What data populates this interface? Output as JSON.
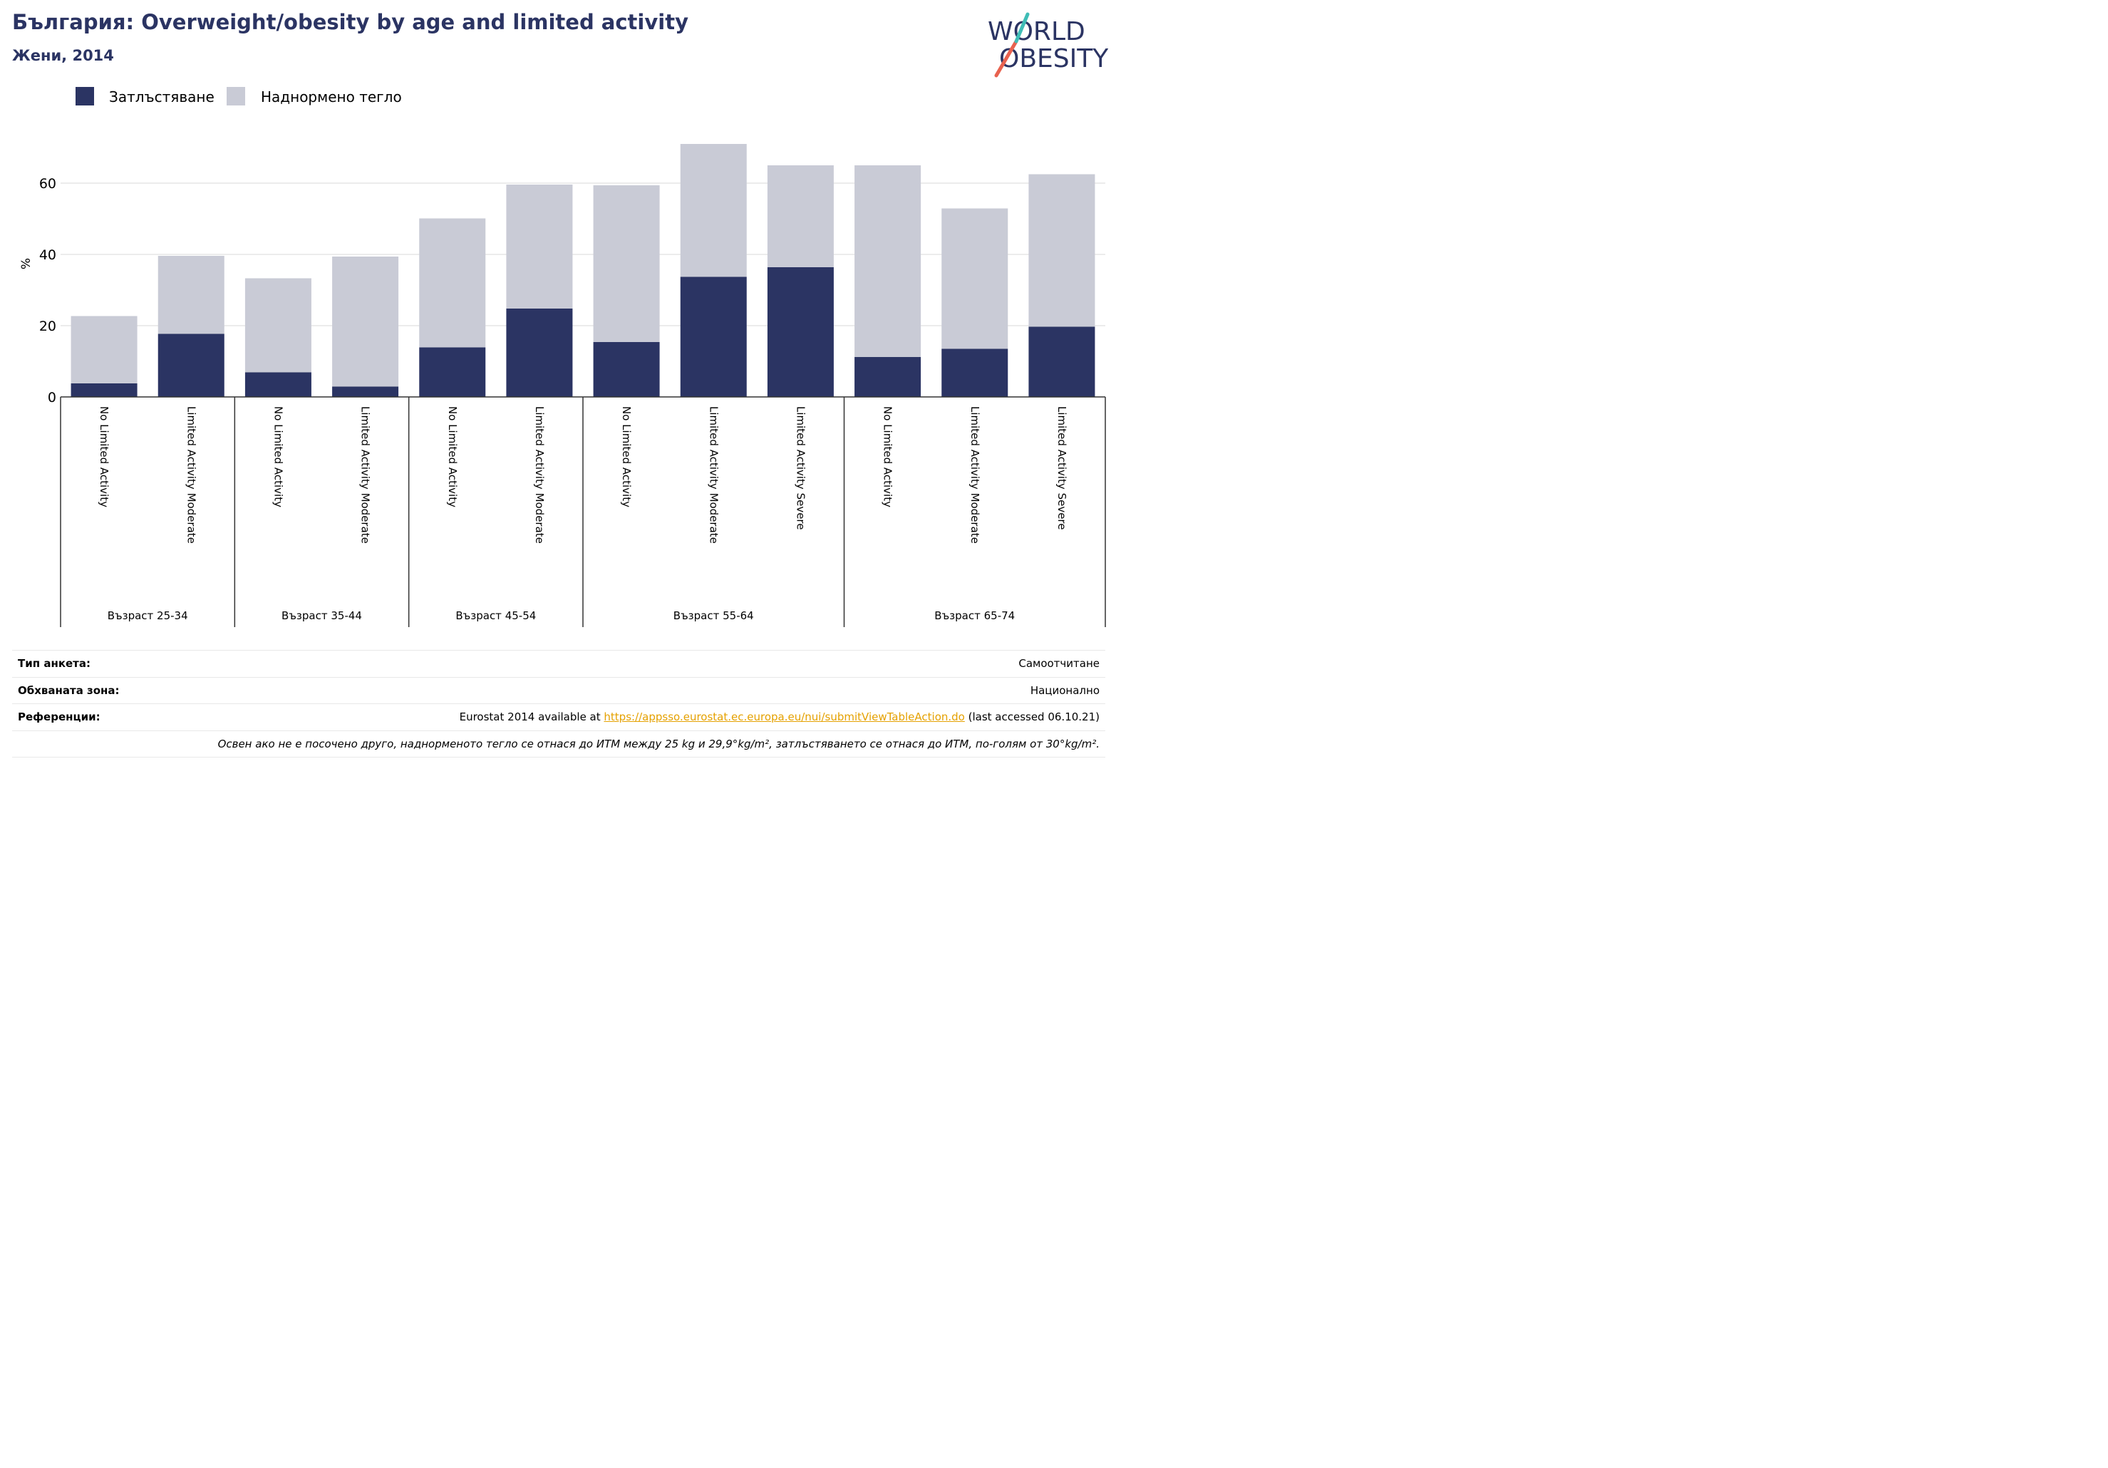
{
  "header": {
    "title": "България: Overweight/obesity by age and limited activity",
    "subtitle": "Жени, 2014"
  },
  "logo": {
    "line1": "WORLD",
    "line2": "OBESITY"
  },
  "colors": {
    "obesity": "#2b3463",
    "overweight": "#c9cbd6",
    "title": "#2b3463",
    "link": "#e5a100"
  },
  "chart_data": {
    "type": "bar",
    "stacked": true,
    "ylabel": "%",
    "yticks": [
      0,
      20,
      40,
      60
    ],
    "ylim": [
      0,
      72
    ],
    "grid": true,
    "legend_position": "top-left",
    "categories": [
      "No Limited Activity",
      "Limited Activity Moderate",
      "No Limited Activity",
      "Limited Activity Moderate",
      "No Limited Activity",
      "Limited Activity Moderate",
      "No Limited Activity",
      "Limited Activity Moderate",
      "Limited Activity Severe",
      "No Limited Activity",
      "Limited Activity Moderate",
      "Limited Activity Severe"
    ],
    "groups": [
      {
        "label": "Възраст 25-34",
        "count": 2
      },
      {
        "label": "Възраст 35-44",
        "count": 2
      },
      {
        "label": "Възраст 45-54",
        "count": 2
      },
      {
        "label": "Възраст 55-64",
        "count": 3
      },
      {
        "label": "Възраст 65-74",
        "count": 3
      }
    ],
    "series": [
      {
        "name": "Затлъстяване",
        "values": [
          3.8,
          17.7,
          6.9,
          2.9,
          13.9,
          24.8,
          15.4,
          33.7,
          36.4,
          11.2,
          13.5,
          19.7
        ]
      },
      {
        "name": "Наднормено тегло",
        "values": [
          18.9,
          21.9,
          26.4,
          36.5,
          36.2,
          34.8,
          44.0,
          37.3,
          28.6,
          53.8,
          39.4,
          42.8
        ]
      }
    ]
  },
  "info": {
    "survey_label": "Тип анкета:",
    "survey_value": "Самоотчитане",
    "area_label": "Обхваната зона:",
    "area_value": "Национално",
    "refs_label": "Референции:",
    "refs_prefix": "Eurostat 2014 available at ",
    "refs_link": "https://appsso.eurostat.ec.europa.eu/nui/submitViewTableAction.do",
    "refs_suffix": " (last accessed 06.10.21)",
    "note": "Освен ако не е посочено друго, наднорменото тегло се отнася до ИТМ между 25 kg и 29,9°kg/m², затлъстяването се отнася до ИТМ, по-голям от 30°kg/m²."
  }
}
